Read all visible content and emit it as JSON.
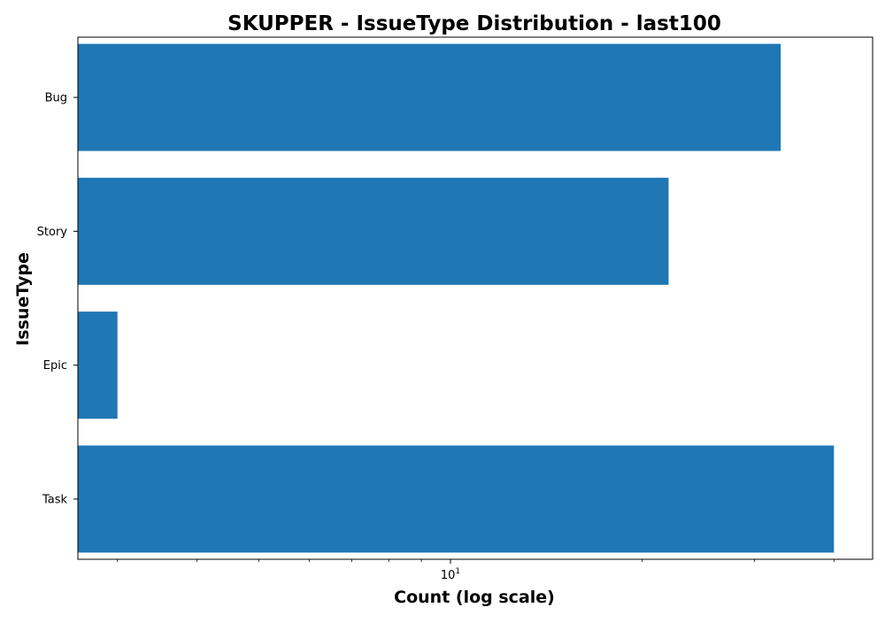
{
  "chart_data": {
    "type": "bar",
    "orientation": "horizontal",
    "title": "SKUPPER - IssueType Distribution - last100",
    "xlabel": "Count (log scale)",
    "ylabel": "IssueType",
    "x_scale": "log",
    "xlim": [
      2.6,
      46
    ],
    "categories": [
      "Bug",
      "Story",
      "Epic",
      "Task"
    ],
    "values": [
      33,
      22,
      3,
      40
    ],
    "major_ticks": [
      {
        "base": "10",
        "exponent": "1",
        "value": 10
      }
    ],
    "minor_ticks": [
      3,
      4,
      5,
      6,
      7,
      8,
      9,
      20,
      30,
      40
    ],
    "bar_color": "#1f77b4",
    "grid": false,
    "legend": null
  }
}
